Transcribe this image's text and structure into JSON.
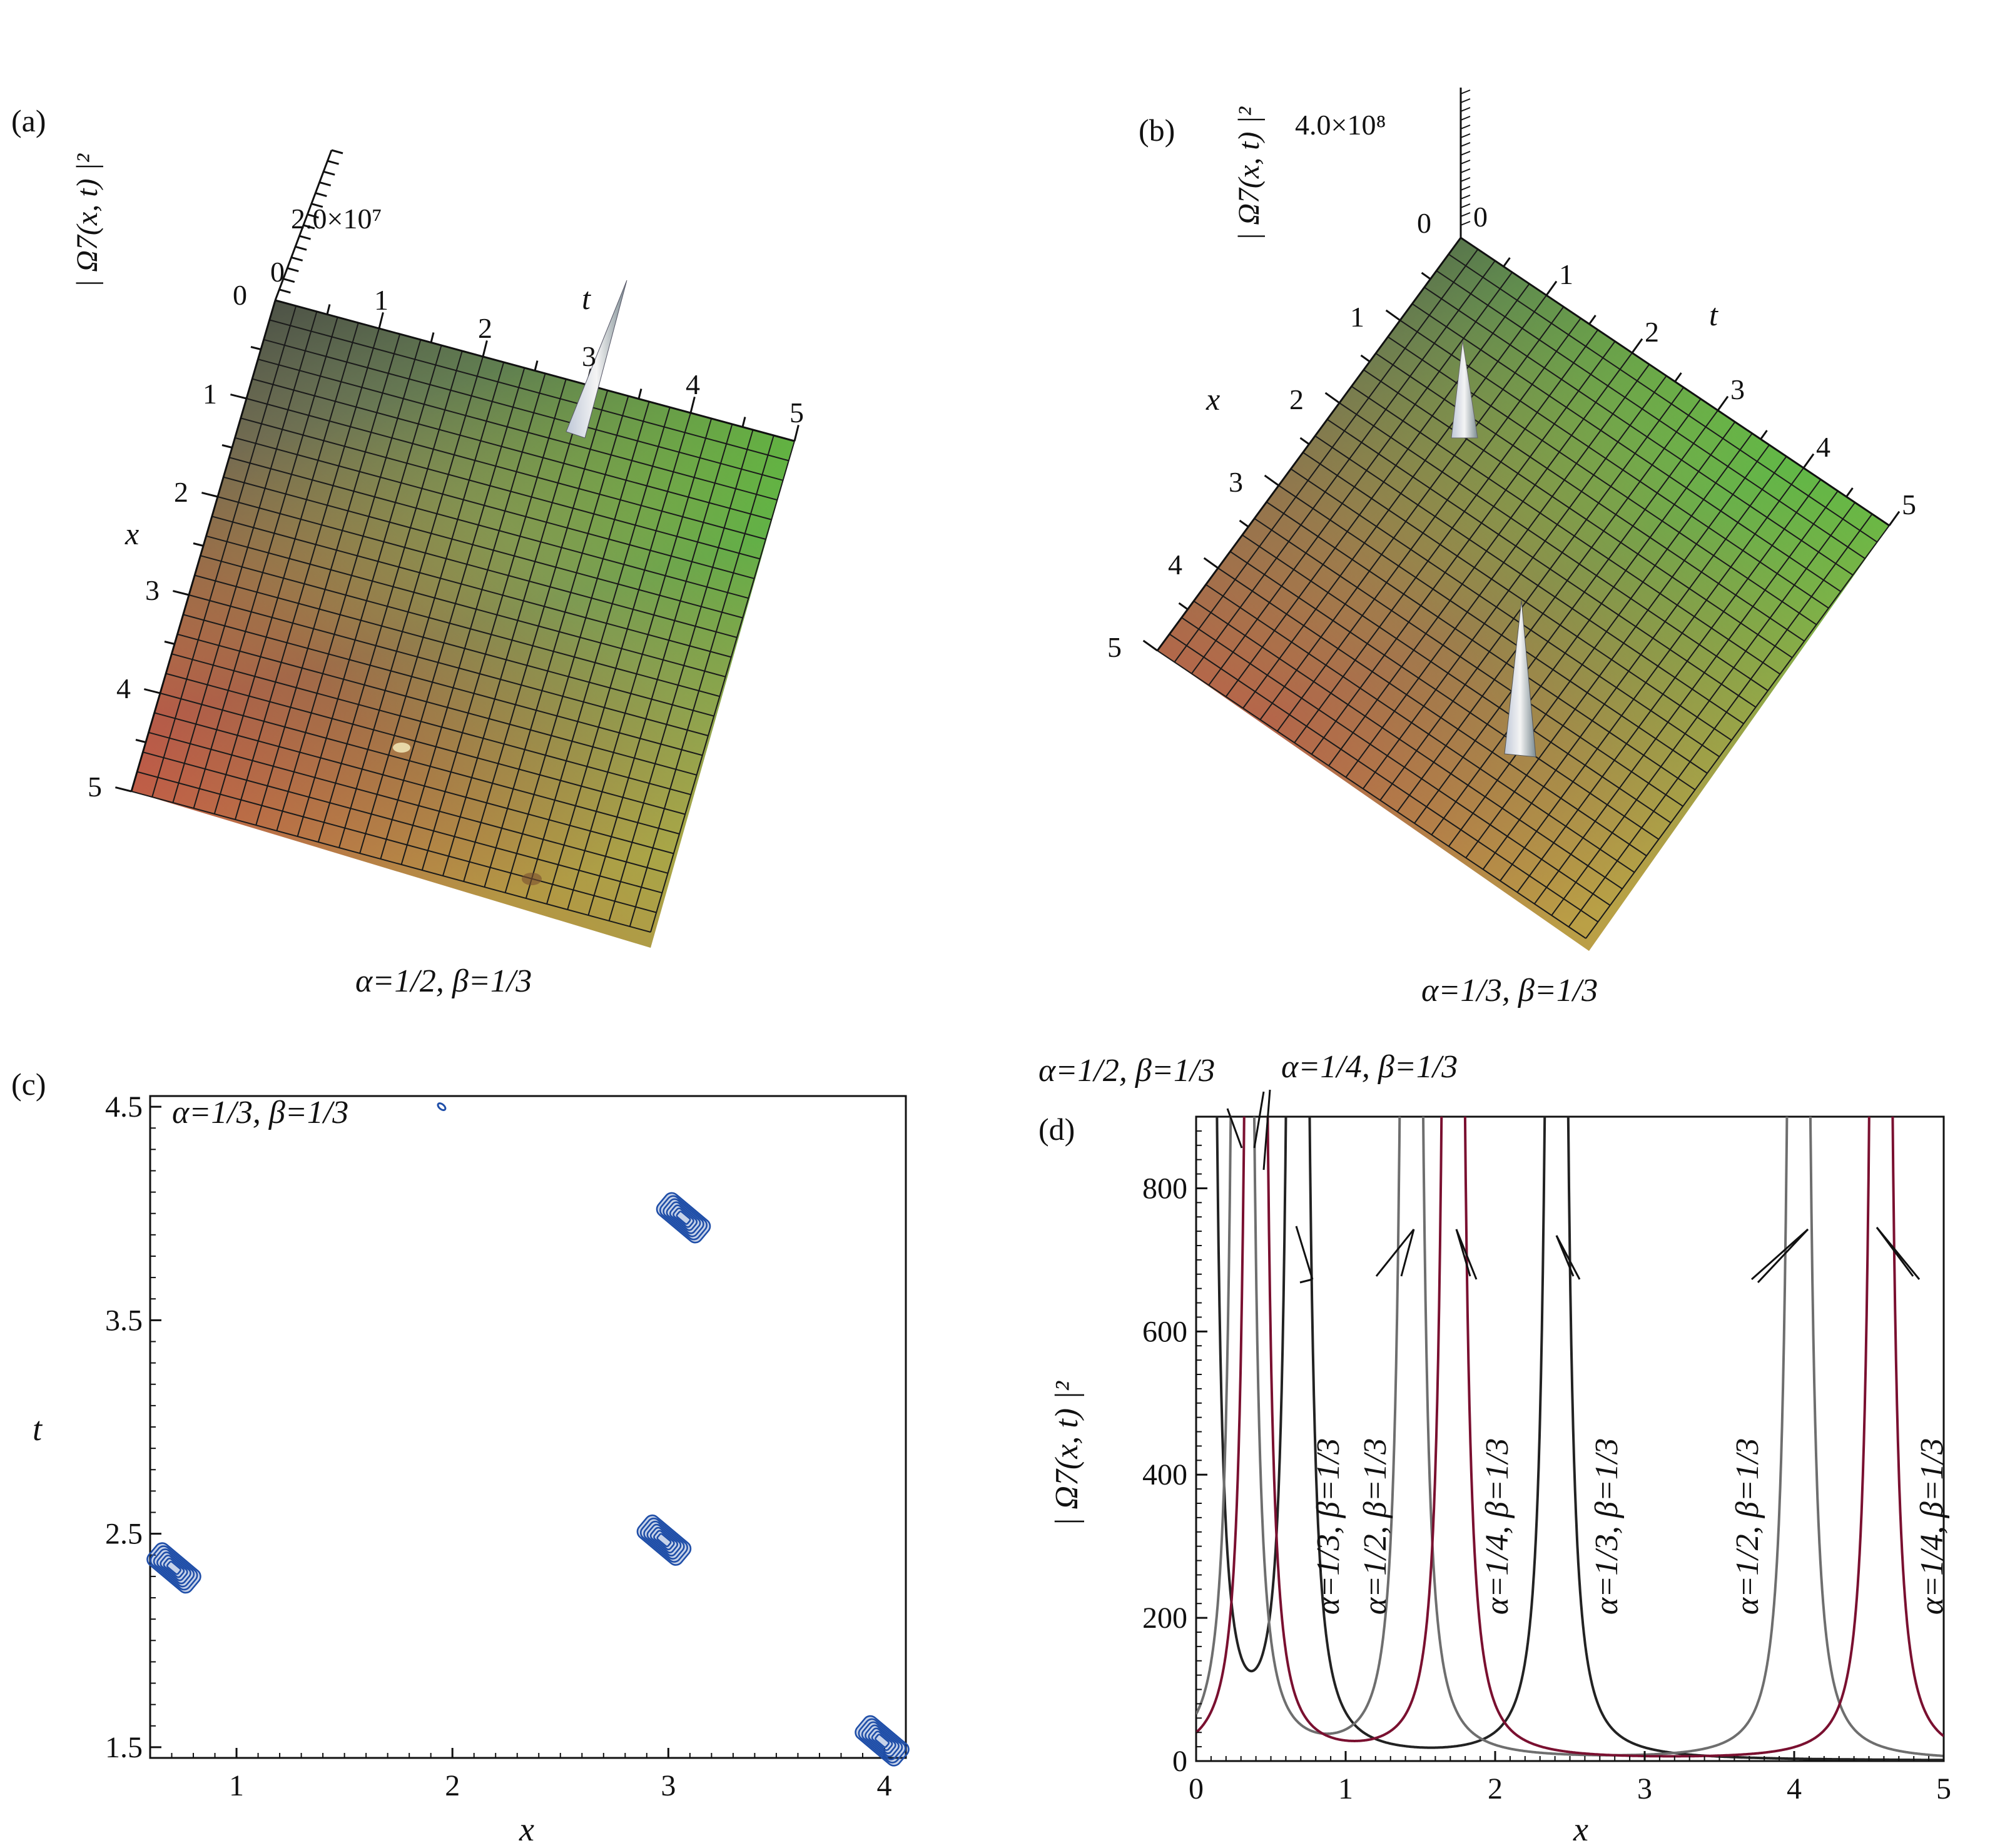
{
  "colors": {
    "axis": "#111111",
    "grid": "#1a1a1a",
    "contour": "#1f4ea8",
    "curve_a13": "#222222",
    "curve_a12": "#6e6e6e",
    "curve_a14": "#7a1030",
    "surface_dark": "#4a4a4a",
    "surface_red": "#c85050",
    "surface_green": "#4cc83c",
    "surface_olive": "#8aa050",
    "surface_yellow": "#b8c840"
  },
  "chart_data": [
    {
      "id": "a",
      "type": "surface3d",
      "panel_label": "(a)",
      "caption": "α=1/2, β=1/3",
      "zlabel": "| Ω7(x, t) |²",
      "z_tick_label": "2.0×10⁷",
      "z_zero_label": "0",
      "xlabel": "x",
      "tlabel": "t",
      "x_ticks": [
        "1",
        "2",
        "3",
        "4",
        "5"
      ],
      "t_ticks": [
        "0",
        "1",
        "2",
        "3",
        "4",
        "5"
      ],
      "x_range": [
        0,
        5
      ],
      "t_range": [
        0,
        5
      ],
      "peaks": [
        {
          "x": 0.2,
          "t": 3.1,
          "height": "sharp spike"
        }
      ]
    },
    {
      "id": "b",
      "type": "surface3d",
      "panel_label": "(b)",
      "caption": "α=1/3, β=1/3",
      "zlabel": "| Ω7(x, t) |²",
      "z_tick_label": "4.0×10⁸",
      "z_zero_label": "0",
      "xlabel": "x",
      "tlabel": "t",
      "x_ticks": [
        "1",
        "2",
        "3",
        "4",
        "5"
      ],
      "t_ticks": [
        "0",
        "1",
        "2",
        "3",
        "4",
        "5"
      ],
      "x_range": [
        0,
        5
      ],
      "t_range": [
        0,
        5
      ],
      "peaks": [
        {
          "x": 2.4,
          "t": 0.3
        },
        {
          "x": 3.3,
          "t": 2.5
        }
      ]
    },
    {
      "id": "c",
      "type": "contour",
      "panel_label": "(c)",
      "caption": "α=1/3, β=1/3",
      "xlabel": "x",
      "ylabel": "t",
      "xlim": [
        0.6,
        4.1
      ],
      "ylim": [
        1.45,
        4.55
      ],
      "x_ticks": [
        1,
        2,
        3,
        4
      ],
      "y_ticks": [
        1.5,
        2.5,
        3.5,
        4.5
      ],
      "x_tick_labels": [
        "1",
        "2",
        "3",
        "4"
      ],
      "y_tick_labels": [
        "1.5",
        "2.5",
        "3.5",
        "4.5"
      ],
      "blobs": [
        {
          "x": 0.71,
          "t": 2.34,
          "size": "large"
        },
        {
          "x": 2.98,
          "t": 2.47,
          "size": "large"
        },
        {
          "x": 3.07,
          "t": 3.98,
          "size": "large"
        },
        {
          "x": 3.99,
          "t": 1.53,
          "size": "large"
        },
        {
          "x": 1.95,
          "t": 4.5,
          "size": "small"
        }
      ]
    },
    {
      "id": "d",
      "type": "line",
      "panel_label": "(d)",
      "xlabel": "x",
      "ylabel": "| Ω7(x, t) |²",
      "xlim": [
        0,
        5
      ],
      "ylim": [
        0,
        900
      ],
      "x_ticks": [
        0,
        1,
        2,
        3,
        4,
        5
      ],
      "y_ticks": [
        0,
        200,
        400,
        600,
        800
      ],
      "x_tick_labels": [
        "0",
        "1",
        "2",
        "3",
        "4",
        "5"
      ],
      "y_tick_labels": [
        "0",
        "200",
        "400",
        "600",
        "800"
      ],
      "series": [
        {
          "name": "α=1/3, β=1/3",
          "color_key": "curve_a13",
          "poles": [
            0.06,
            0.68,
            2.41
          ]
        },
        {
          "name": "α=1/2, β=1/3",
          "color_key": "curve_a12",
          "poles": [
            0.31,
            1.44,
            4.03
          ]
        },
        {
          "name": "α=1/4, β=1/3",
          "color_key": "curve_a14",
          "poles": [
            0.4,
            1.72,
            4.58
          ]
        }
      ],
      "annotations": [
        {
          "text": "α=1/2, β=1/3",
          "position": "top-left"
        },
        {
          "text": "α=1/4, β=1/3",
          "position": "top-center"
        },
        {
          "text": "α=1/3, β=1/3",
          "rotated": true
        },
        {
          "text": "α=1/2, β=1/3",
          "rotated": true
        },
        {
          "text": "α=1/4, β=1/3",
          "rotated": true
        },
        {
          "text": "α=1/3, β=1/3",
          "rotated": true
        },
        {
          "text": "α=1/2, β=1/3",
          "rotated": true
        },
        {
          "text": "α=1/4, β=1/3",
          "rotated": true
        }
      ]
    }
  ]
}
